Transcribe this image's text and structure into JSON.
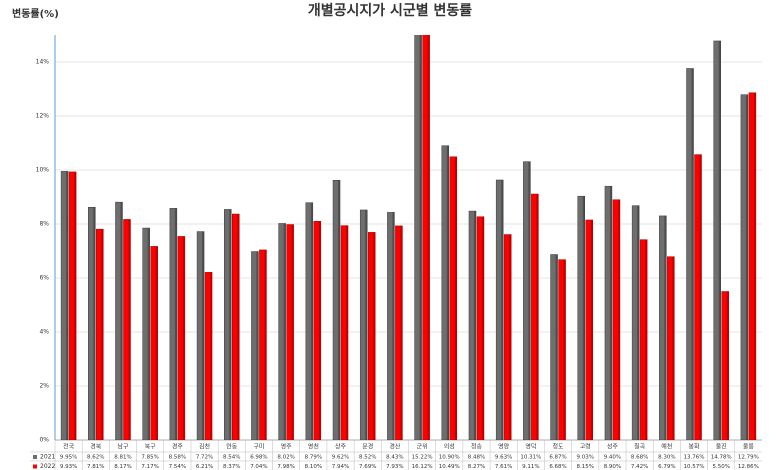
{
  "chart_data": {
    "type": "bar",
    "title": "개별공시지가 시군별 변동률",
    "y_label": "변동률(%)",
    "categories": [
      "전국",
      "경북",
      "남구",
      "북구",
      "경주",
      "김천",
      "안동",
      "구미",
      "영주",
      "영천",
      "상주",
      "문경",
      "경산",
      "군위",
      "의성",
      "청송",
      "영양",
      "영덕",
      "청도",
      "고령",
      "성주",
      "칠곡",
      "예천",
      "봉화",
      "울진",
      "울릉"
    ],
    "series": [
      {
        "name": "2021",
        "color": "#6e6e6e",
        "values": [
          9.95,
          8.62,
          8.81,
          7.85,
          8.58,
          7.72,
          8.54,
          6.98,
          8.02,
          8.79,
          9.62,
          8.52,
          8.43,
          15.22,
          10.9,
          8.48,
          9.63,
          10.31,
          6.87,
          9.03,
          9.4,
          8.68,
          8.3,
          13.76,
          14.78,
          12.79
        ],
        "value_labels": [
          "9.95%",
          "8.62%",
          "8.81%",
          "7.85%",
          "8.58%",
          "7.72%",
          "8.54%",
          "6.98%",
          "8.02%",
          "8.79%",
          "9.62%",
          "8.52%",
          "8.43%",
          "15.22%",
          "10.90%",
          "8.48%",
          "9.63%",
          "10.31%",
          "6.87%",
          "9.03%",
          "9.40%",
          "8.68%",
          "8.30%",
          "13.76%",
          "14.78%",
          "12.79%"
        ]
      },
      {
        "name": "2022",
        "color": "#ff0000",
        "values": [
          9.93,
          7.81,
          8.17,
          7.17,
          7.54,
          6.21,
          8.37,
          7.04,
          7.98,
          8.1,
          7.94,
          7.69,
          7.93,
          16.12,
          10.49,
          8.27,
          7.61,
          9.11,
          6.68,
          8.15,
          8.9,
          7.42,
          6.79,
          10.57,
          5.5,
          12.86
        ],
        "value_labels": [
          "9.93%",
          "7.81%",
          "8.17%",
          "7.17%",
          "7.54%",
          "6.21%",
          "8.37%",
          "7.04%",
          "7.98%",
          "8.10%",
          "7.94%",
          "7.69%",
          "7.93%",
          "16.12%",
          "10.49%",
          "8.27%",
          "7.61%",
          "9.11%",
          "6.68%",
          "8.15%",
          "8.90%",
          "7.42%",
          "6.79%",
          "10.57%",
          "5.50%",
          "12.86%"
        ]
      }
    ],
    "ylim": [
      0,
      15
    ],
    "yticks": [
      {
        "value": 0,
        "label": "0%"
      },
      {
        "value": 2,
        "label": "2%"
      },
      {
        "value": 4,
        "label": "4%"
      },
      {
        "value": 6,
        "label": "6%"
      },
      {
        "value": 8,
        "label": "8%"
      },
      {
        "value": 10,
        "label": "10%"
      },
      {
        "value": 12,
        "label": "12%"
      },
      {
        "value": 14,
        "label": "14%"
      }
    ],
    "grid": true
  }
}
